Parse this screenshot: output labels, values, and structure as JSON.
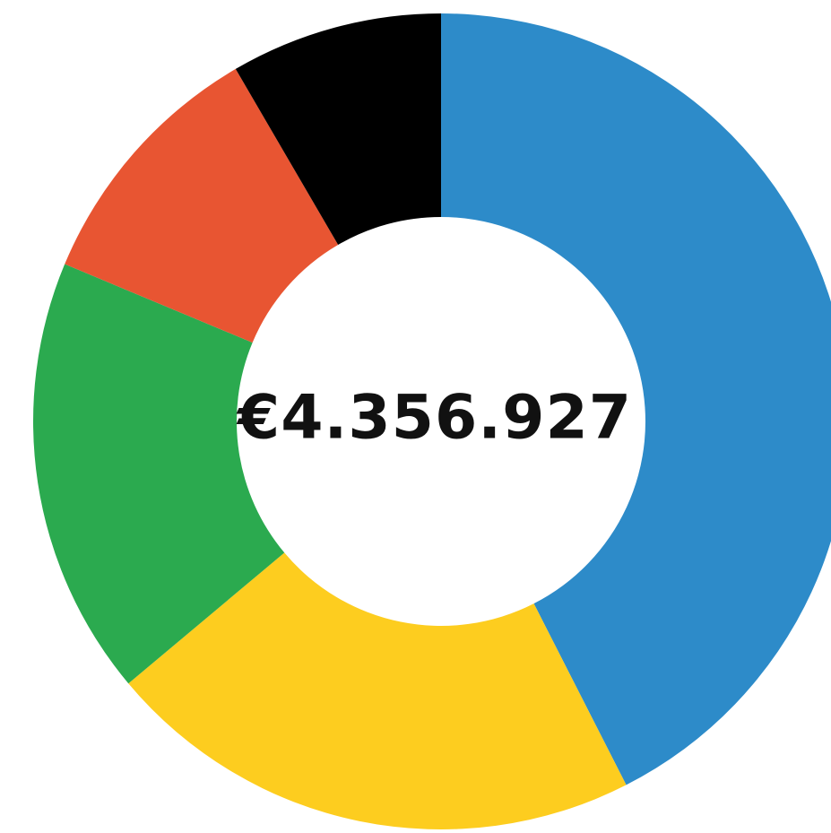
{
  "chart_data": {
    "type": "donut",
    "center_label": "€4.356.927",
    "values": [
      42.5,
      21.4,
      17.4,
      10.3,
      8.4
    ],
    "colors": [
      "#2d8bc9",
      "#fdcd1f",
      "#2baa4f",
      "#e85532",
      "#000000"
    ]
  }
}
